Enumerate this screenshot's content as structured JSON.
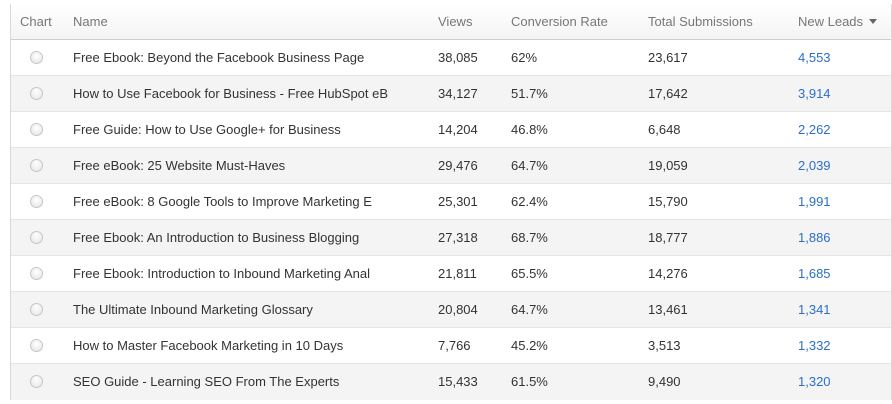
{
  "header": {
    "chart": "Chart",
    "name": "Name",
    "views": "Views",
    "conversion_rate": "Conversion Rate",
    "total_submissions": "Total Submissions",
    "new_leads": "New Leads"
  },
  "rows": [
    {
      "name": "Free Ebook: Beyond the Facebook Business Page",
      "views": "38,085",
      "conversion_rate": "62%",
      "total_submissions": "23,617",
      "new_leads": "4,553"
    },
    {
      "name": "How to Use Facebook for Business - Free HubSpot eB",
      "views": "34,127",
      "conversion_rate": "51.7%",
      "total_submissions": "17,642",
      "new_leads": "3,914"
    },
    {
      "name": "Free Guide: How to Use Google+ for Business",
      "views": "14,204",
      "conversion_rate": "46.8%",
      "total_submissions": "6,648",
      "new_leads": "2,262"
    },
    {
      "name": "Free eBook: 25 Website Must-Haves",
      "views": "29,476",
      "conversion_rate": "64.7%",
      "total_submissions": "19,059",
      "new_leads": "2,039"
    },
    {
      "name": "Free eBook: 8 Google Tools to Improve Marketing E",
      "views": "25,301",
      "conversion_rate": "62.4%",
      "total_submissions": "15,790",
      "new_leads": "1,991"
    },
    {
      "name": "Free Ebook: An Introduction to Business Blogging",
      "views": "27,318",
      "conversion_rate": "68.7%",
      "total_submissions": "18,777",
      "new_leads": "1,886"
    },
    {
      "name": "Free Ebook: Introduction to Inbound Marketing Anal",
      "views": "21,811",
      "conversion_rate": "65.5%",
      "total_submissions": "14,276",
      "new_leads": "1,685"
    },
    {
      "name": "The Ultimate Inbound Marketing Glossary",
      "views": "20,804",
      "conversion_rate": "64.7%",
      "total_submissions": "13,461",
      "new_leads": "1,341"
    },
    {
      "name": "How to Master Facebook Marketing in 10 Days",
      "views": "7,766",
      "conversion_rate": "45.2%",
      "total_submissions": "3,513",
      "new_leads": "1,332"
    },
    {
      "name": "SEO Guide - Learning SEO From The Experts",
      "views": "15,433",
      "conversion_rate": "61.5%",
      "total_submissions": "9,490",
      "new_leads": "1,320"
    }
  ],
  "colors": {
    "link": "#2a6fc9",
    "header_text": "#777777",
    "row_alt": "#f4f4f4"
  },
  "icons": {
    "radio": "radio-button-icon",
    "sort": "sort-descending-icon"
  }
}
